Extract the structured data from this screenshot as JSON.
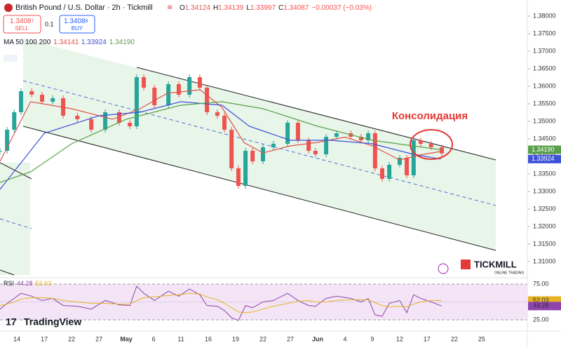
{
  "header": {
    "title": "British Pound / U.S. Dollar · 2h · Tickmill",
    "ohlc": [
      {
        "label": "O",
        "value": 1.34124
      },
      {
        "label": "H",
        "value": 1.34139
      },
      {
        "label": "L",
        "value": 1.33997
      },
      {
        "label": "C",
        "value": 1.34087
      }
    ],
    "change": "−0.00037 (−0.03%)",
    "sell": {
      "price": "1.3408",
      "pip": "7",
      "label": "SELL"
    },
    "lot": "0.1",
    "buy": {
      "price": "1.3408",
      "pip": "8",
      "label": "BUY"
    },
    "annotation": "Консолидация",
    "brand": "TradingView",
    "broker": "TICKMILL",
    "broker_sub": "ONLINE TRADING"
  },
  "chart_data": [
    {
      "type": "candlestick",
      "ma_label": "MA 50 100 200",
      "x": [
        -0.62,
        -0.36,
        -0.1,
        0.15,
        0.54,
        0.92,
        1.31,
        1.69,
        2.21,
        2.72,
        3.23,
        3.74,
        4.13,
        4.38,
        4.64,
        5.03,
        5.54,
        5.92,
        6.31,
        6.69,
        6.95,
        7.33,
        7.59,
        7.85,
        8.1,
        8.36,
        8.62,
        9.0,
        9.38,
        9.9,
        10.28,
        10.67,
        10.92,
        11.31,
        11.69,
        12.21,
        12.59,
        12.85,
        13.1,
        13.36,
        13.62,
        14.0,
        14.26,
        14.51,
        14.77,
        15.15,
        15.54
      ],
      "values": [
        1.3416,
        1.3476,
        1.3526,
        1.3586,
        1.3576,
        1.3556,
        1.3566,
        1.3516,
        1.3506,
        1.3476,
        1.3526,
        1.3496,
        1.3486,
        1.3626,
        1.3596,
        1.3546,
        1.3606,
        1.3576,
        1.3626,
        1.3596,
        1.3526,
        1.3516,
        1.3476,
        1.3366,
        1.3316,
        1.3416,
        1.3386,
        1.3426,
        1.3436,
        1.3496,
        1.3446,
        1.3416,
        1.3406,
        1.3456,
        1.3466,
        1.3456,
        1.3446,
        1.3466,
        1.3366,
        1.3336,
        1.3376,
        1.3396,
        1.3346,
        1.3446,
        1.3436,
        1.3426,
        1.34087
      ],
      "up_color": "#26a69a",
      "down_color": "#ef5350",
      "series": [
        {
          "color": "#e0524b",
          "x": [
            -0.62,
            0.5,
            2,
            3.5,
            4.5,
            5.5,
            6.7,
            7.5,
            8.3,
            9,
            10,
            11,
            12,
            13,
            14,
            14.8,
            15.5
          ],
          "values": [
            1.3386,
            1.3556,
            1.3536,
            1.3506,
            1.3536,
            1.358,
            1.359,
            1.354,
            1.344,
            1.341,
            1.343,
            1.344,
            1.3455,
            1.343,
            1.339,
            1.3405,
            1.34141
          ],
          "last": 1.34141
        },
        {
          "color": "#3f51d8",
          "x": [
            -0.62,
            1,
            3,
            4.5,
            6,
            7.5,
            8.5,
            10,
            11.5,
            13,
            14.5,
            15.5
          ],
          "values": [
            1.3306,
            1.3466,
            1.3516,
            1.3526,
            1.3556,
            1.3546,
            1.3486,
            1.3446,
            1.3446,
            1.3436,
            1.3406,
            1.33924
          ],
          "last": 1.33924
        },
        {
          "color": "#5aa04a",
          "x": [
            -0.62,
            0.5,
            2,
            4,
            6,
            7.5,
            9,
            11,
            13,
            15.5
          ],
          "values": [
            1.3326,
            1.3356,
            1.3436,
            1.3506,
            1.3546,
            1.3556,
            1.3536,
            1.3486,
            1.3446,
            1.3419
          ],
          "last": {
            "value": 1.3419,
            "label": "1.34190"
          }
        }
      ],
      "xlim": [
        -0.62,
        18.67
      ],
      "ylim": [
        1.3056,
        1.3846
      ],
      "yticks": [
        {
          "value": 1.38,
          "label": "1.38000"
        },
        {
          "value": 1.375,
          "label": "1.37500"
        },
        {
          "value": 1.37,
          "label": "1.37000"
        },
        {
          "value": 1.365,
          "label": "1.36500"
        },
        {
          "value": 1.36,
          "label": "1.36000"
        },
        {
          "value": 1.355,
          "label": "1.35500"
        },
        {
          "value": 1.35,
          "label": "1.35000"
        },
        {
          "value": 1.345,
          "label": "1.34500"
        },
        {
          "value": 1.34,
          "label": "1.34000"
        },
        {
          "value": 1.335,
          "label": "1.33500"
        },
        {
          "value": 1.33,
          "label": "1.33000"
        },
        {
          "value": 1.325,
          "label": "1.32500"
        },
        {
          "value": 1.32,
          "label": "1.32000"
        },
        {
          "value": 1.315,
          "label": "1.31500"
        },
        {
          "value": 1.31,
          "label": "1.31000"
        }
      ],
      "xticks": [
        {
          "value": 0,
          "label": "14"
        },
        {
          "value": 1,
          "label": "17"
        },
        {
          "value": 2,
          "label": "22"
        },
        {
          "value": 3,
          "label": "27"
        },
        {
          "value": 4,
          "label": "May"
        },
        {
          "value": 5,
          "label": "6"
        },
        {
          "value": 6,
          "label": "11"
        },
        {
          "value": 7,
          "label": "16"
        },
        {
          "value": 8,
          "label": "19"
        },
        {
          "value": 9,
          "label": "22"
        },
        {
          "value": 10,
          "label": "27"
        },
        {
          "value": 11,
          "label": "Jun"
        },
        {
          "value": 12,
          "label": "4"
        },
        {
          "value": 13,
          "label": "9"
        },
        {
          "value": 14,
          "label": "12"
        },
        {
          "value": 15,
          "label": "17"
        },
        {
          "value": 16,
          "label": "22"
        },
        {
          "value": 17,
          "label": "25"
        }
      ]
    },
    {
      "type": "line",
      "label": "RSI",
      "series": [
        {
          "color": "#8e44ad",
          "values": [
            40,
            48,
            55,
            62,
            58,
            52,
            55,
            45,
            44,
            40,
            52,
            46,
            45,
            72,
            62,
            52,
            65,
            58,
            68,
            60,
            45,
            44,
            38,
            28,
            24,
            45,
            42,
            50,
            52,
            62,
            52,
            45,
            44,
            55,
            58,
            55,
            50,
            55,
            32,
            30,
            48,
            52,
            35,
            60,
            55,
            50,
            44.28
          ]
        },
        {
          "color": "#e6b422",
          "values": [
            45,
            47,
            50,
            54,
            56,
            56,
            55,
            52,
            50,
            48,
            48,
            47,
            47,
            52,
            56,
            57,
            59,
            60,
            62,
            61,
            57,
            53,
            48,
            42,
            36,
            35,
            36,
            40,
            44,
            48,
            51,
            52,
            50,
            50,
            52,
            53,
            53,
            53,
            49,
            45,
            43,
            44,
            43,
            47,
            50,
            52,
            52.03
          ]
        }
      ],
      "ylim": [
        11.3,
        82.8
      ],
      "yticks": [
        {
          "value": 75,
          "label": "75.00"
        },
        {
          "value": 25,
          "label": "25.00"
        }
      ]
    }
  ]
}
